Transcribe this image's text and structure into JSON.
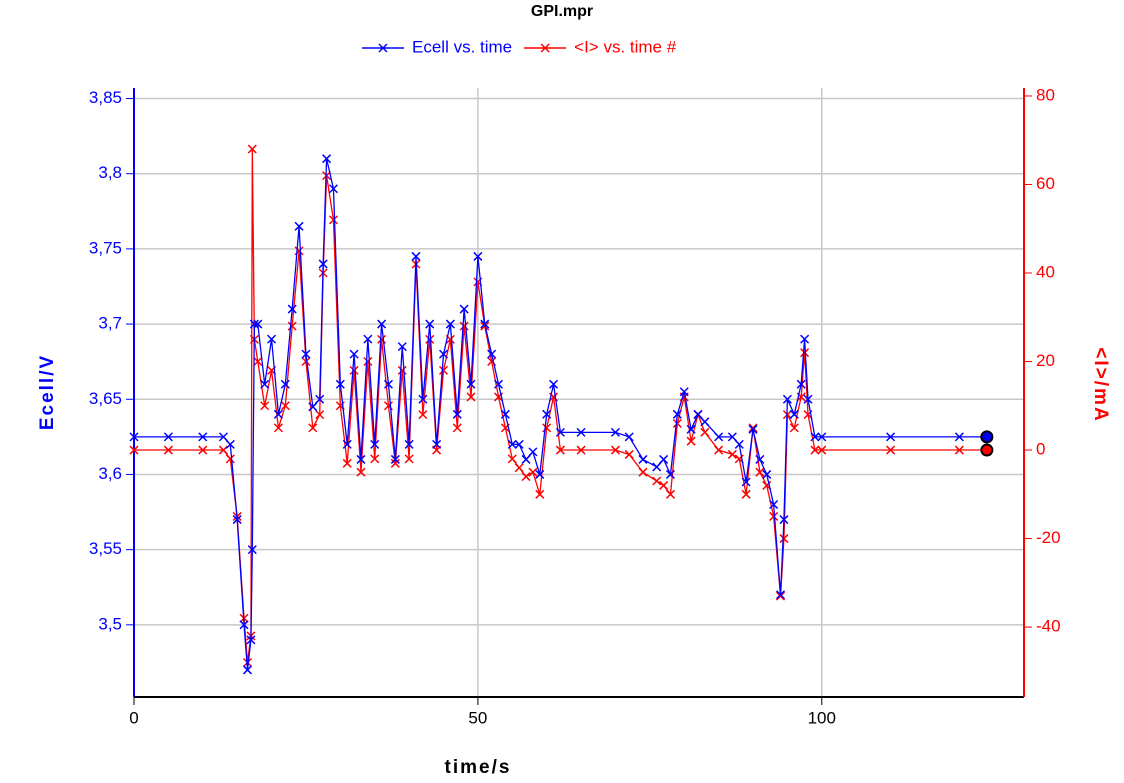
{
  "chart_data": {
    "type": "line",
    "title": "GPI.mpr",
    "xlabel": "time/s",
    "ylabel": "Ecell/V",
    "y2label": "<I>/mA",
    "x": [
      0,
      5,
      10,
      13,
      14,
      15,
      16,
      16.5,
      17,
      17.2,
      17.5,
      18,
      19,
      20,
      21,
      22,
      23,
      24,
      25,
      26,
      27,
      27.5,
      28,
      29,
      30,
      31,
      32,
      33,
      34,
      35,
      36,
      37,
      38,
      39,
      40,
      41,
      42,
      43,
      44,
      45,
      46,
      47,
      48,
      49,
      50,
      51,
      52,
      53,
      54,
      55,
      56,
      57,
      58,
      59,
      60,
      61,
      62,
      65,
      70,
      72,
      74,
      76,
      77,
      78,
      79,
      80,
      81,
      82,
      83,
      85,
      87,
      88,
      89,
      90,
      91,
      92,
      93,
      94,
      94.5,
      95,
      96,
      97,
      97.5,
      98,
      99,
      100,
      110,
      120,
      124
    ],
    "series": [
      {
        "name": "Ecell vs. time",
        "color": "#0000ff",
        "axis": "y",
        "values": [
          3.625,
          3.625,
          3.625,
          3.625,
          3.62,
          3.57,
          3.5,
          3.47,
          3.49,
          3.55,
          3.7,
          3.7,
          3.66,
          3.69,
          3.64,
          3.66,
          3.71,
          3.765,
          3.68,
          3.645,
          3.65,
          3.74,
          3.81,
          3.79,
          3.66,
          3.62,
          3.68,
          3.61,
          3.69,
          3.62,
          3.7,
          3.66,
          3.61,
          3.685,
          3.62,
          3.745,
          3.65,
          3.7,
          3.62,
          3.68,
          3.7,
          3.64,
          3.71,
          3.66,
          3.745,
          3.7,
          3.68,
          3.66,
          3.64,
          3.62,
          3.62,
          3.61,
          3.615,
          3.6,
          3.64,
          3.66,
          3.628,
          3.628,
          3.628,
          3.625,
          3.61,
          3.605,
          3.61,
          3.6,
          3.64,
          3.655,
          3.63,
          3.64,
          3.635,
          3.625,
          3.625,
          3.62,
          3.595,
          3.63,
          3.61,
          3.6,
          3.58,
          3.52,
          3.57,
          3.65,
          3.64,
          3.66,
          3.69,
          3.65,
          3.625,
          3.625,
          3.625,
          3.625,
          3.625
        ]
      },
      {
        "name": "<I> vs. time #",
        "color": "#ff0000",
        "axis": "y2",
        "values": [
          0,
          0,
          0,
          0,
          -2,
          -15,
          -38,
          -48,
          -42,
          68,
          25,
          20,
          10,
          18,
          5,
          10,
          28,
          45,
          20,
          5,
          8,
          40,
          62,
          52,
          10,
          -3,
          18,
          -5,
          20,
          -2,
          25,
          10,
          -3,
          18,
          -2,
          42,
          8,
          25,
          0,
          18,
          25,
          5,
          28,
          12,
          38,
          28,
          20,
          12,
          5,
          -2,
          -4,
          -6,
          -5,
          -10,
          5,
          12,
          0,
          0,
          0,
          -1,
          -5,
          -7,
          -8,
          -10,
          6,
          12,
          2,
          8,
          4,
          0,
          -1,
          -2,
          -10,
          5,
          -5,
          -8,
          -15,
          -33,
          -20,
          8,
          5,
          12,
          22,
          8,
          0,
          0,
          0,
          0,
          0
        ]
      }
    ],
    "xlim": [
      0,
      129.4
    ],
    "xticks": [
      0,
      50,
      100
    ],
    "ylim": [
      3.452,
      3.857
    ],
    "yticks": [
      {
        "value": 3.5,
        "label": "3,5"
      },
      {
        "value": 3.55,
        "label": "3,55"
      },
      {
        "value": 3.6,
        "label": "3,6"
      },
      {
        "value": 3.65,
        "label": "3,65"
      },
      {
        "value": 3.7,
        "label": "3,7"
      },
      {
        "value": 3.75,
        "label": "3,75"
      },
      {
        "value": 3.8,
        "label": "3,8"
      },
      {
        "value": 3.85,
        "label": "3,85"
      }
    ],
    "y2lim": [
      -55.8,
      81.8
    ],
    "y2ticks": [
      -40,
      -20,
      0,
      20,
      40,
      60,
      80
    ],
    "grid": true
  }
}
